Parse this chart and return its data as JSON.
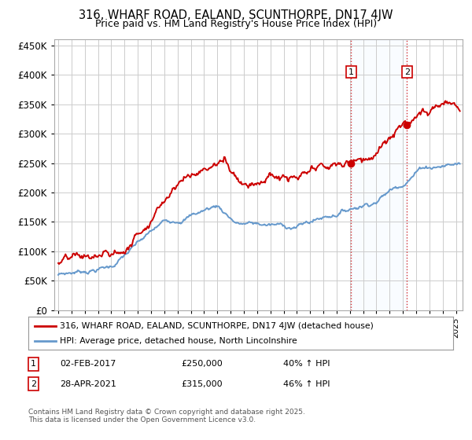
{
  "title": "316, WHARF ROAD, EALAND, SCUNTHORPE, DN17 4JW",
  "subtitle": "Price paid vs. HM Land Registry's House Price Index (HPI)",
  "hpi_label": "HPI: Average price, detached house, North Lincolnshire",
  "price_label": "316, WHARF ROAD, EALAND, SCUNTHORPE, DN17 4JW (detached house)",
  "footer": "Contains HM Land Registry data © Crown copyright and database right 2025.\nThis data is licensed under the Open Government Licence v3.0.",
  "annotation1": {
    "label": "1",
    "date": "02-FEB-2017",
    "price": "£250,000",
    "hpi": "40% ↑ HPI",
    "x_year": 2017.1
  },
  "annotation2": {
    "label": "2",
    "date": "28-APR-2021",
    "price": "£315,000",
    "hpi": "46% ↑ HPI",
    "x_year": 2021.3
  },
  "sale1_y": 250000,
  "sale2_y": 315000,
  "ylim": [
    0,
    460000
  ],
  "yticks": [
    0,
    50000,
    100000,
    150000,
    200000,
    250000,
    300000,
    350000,
    400000,
    450000
  ],
  "xlim_min": 1994.7,
  "xlim_max": 2025.5,
  "price_color": "#cc0000",
  "hpi_color": "#6699cc",
  "hpi_fill_color": "#cce0f0",
  "background_color": "#ffffff",
  "grid_color": "#cccccc",
  "vline_color": "#cc0000",
  "shade_color": "#ddeeff"
}
